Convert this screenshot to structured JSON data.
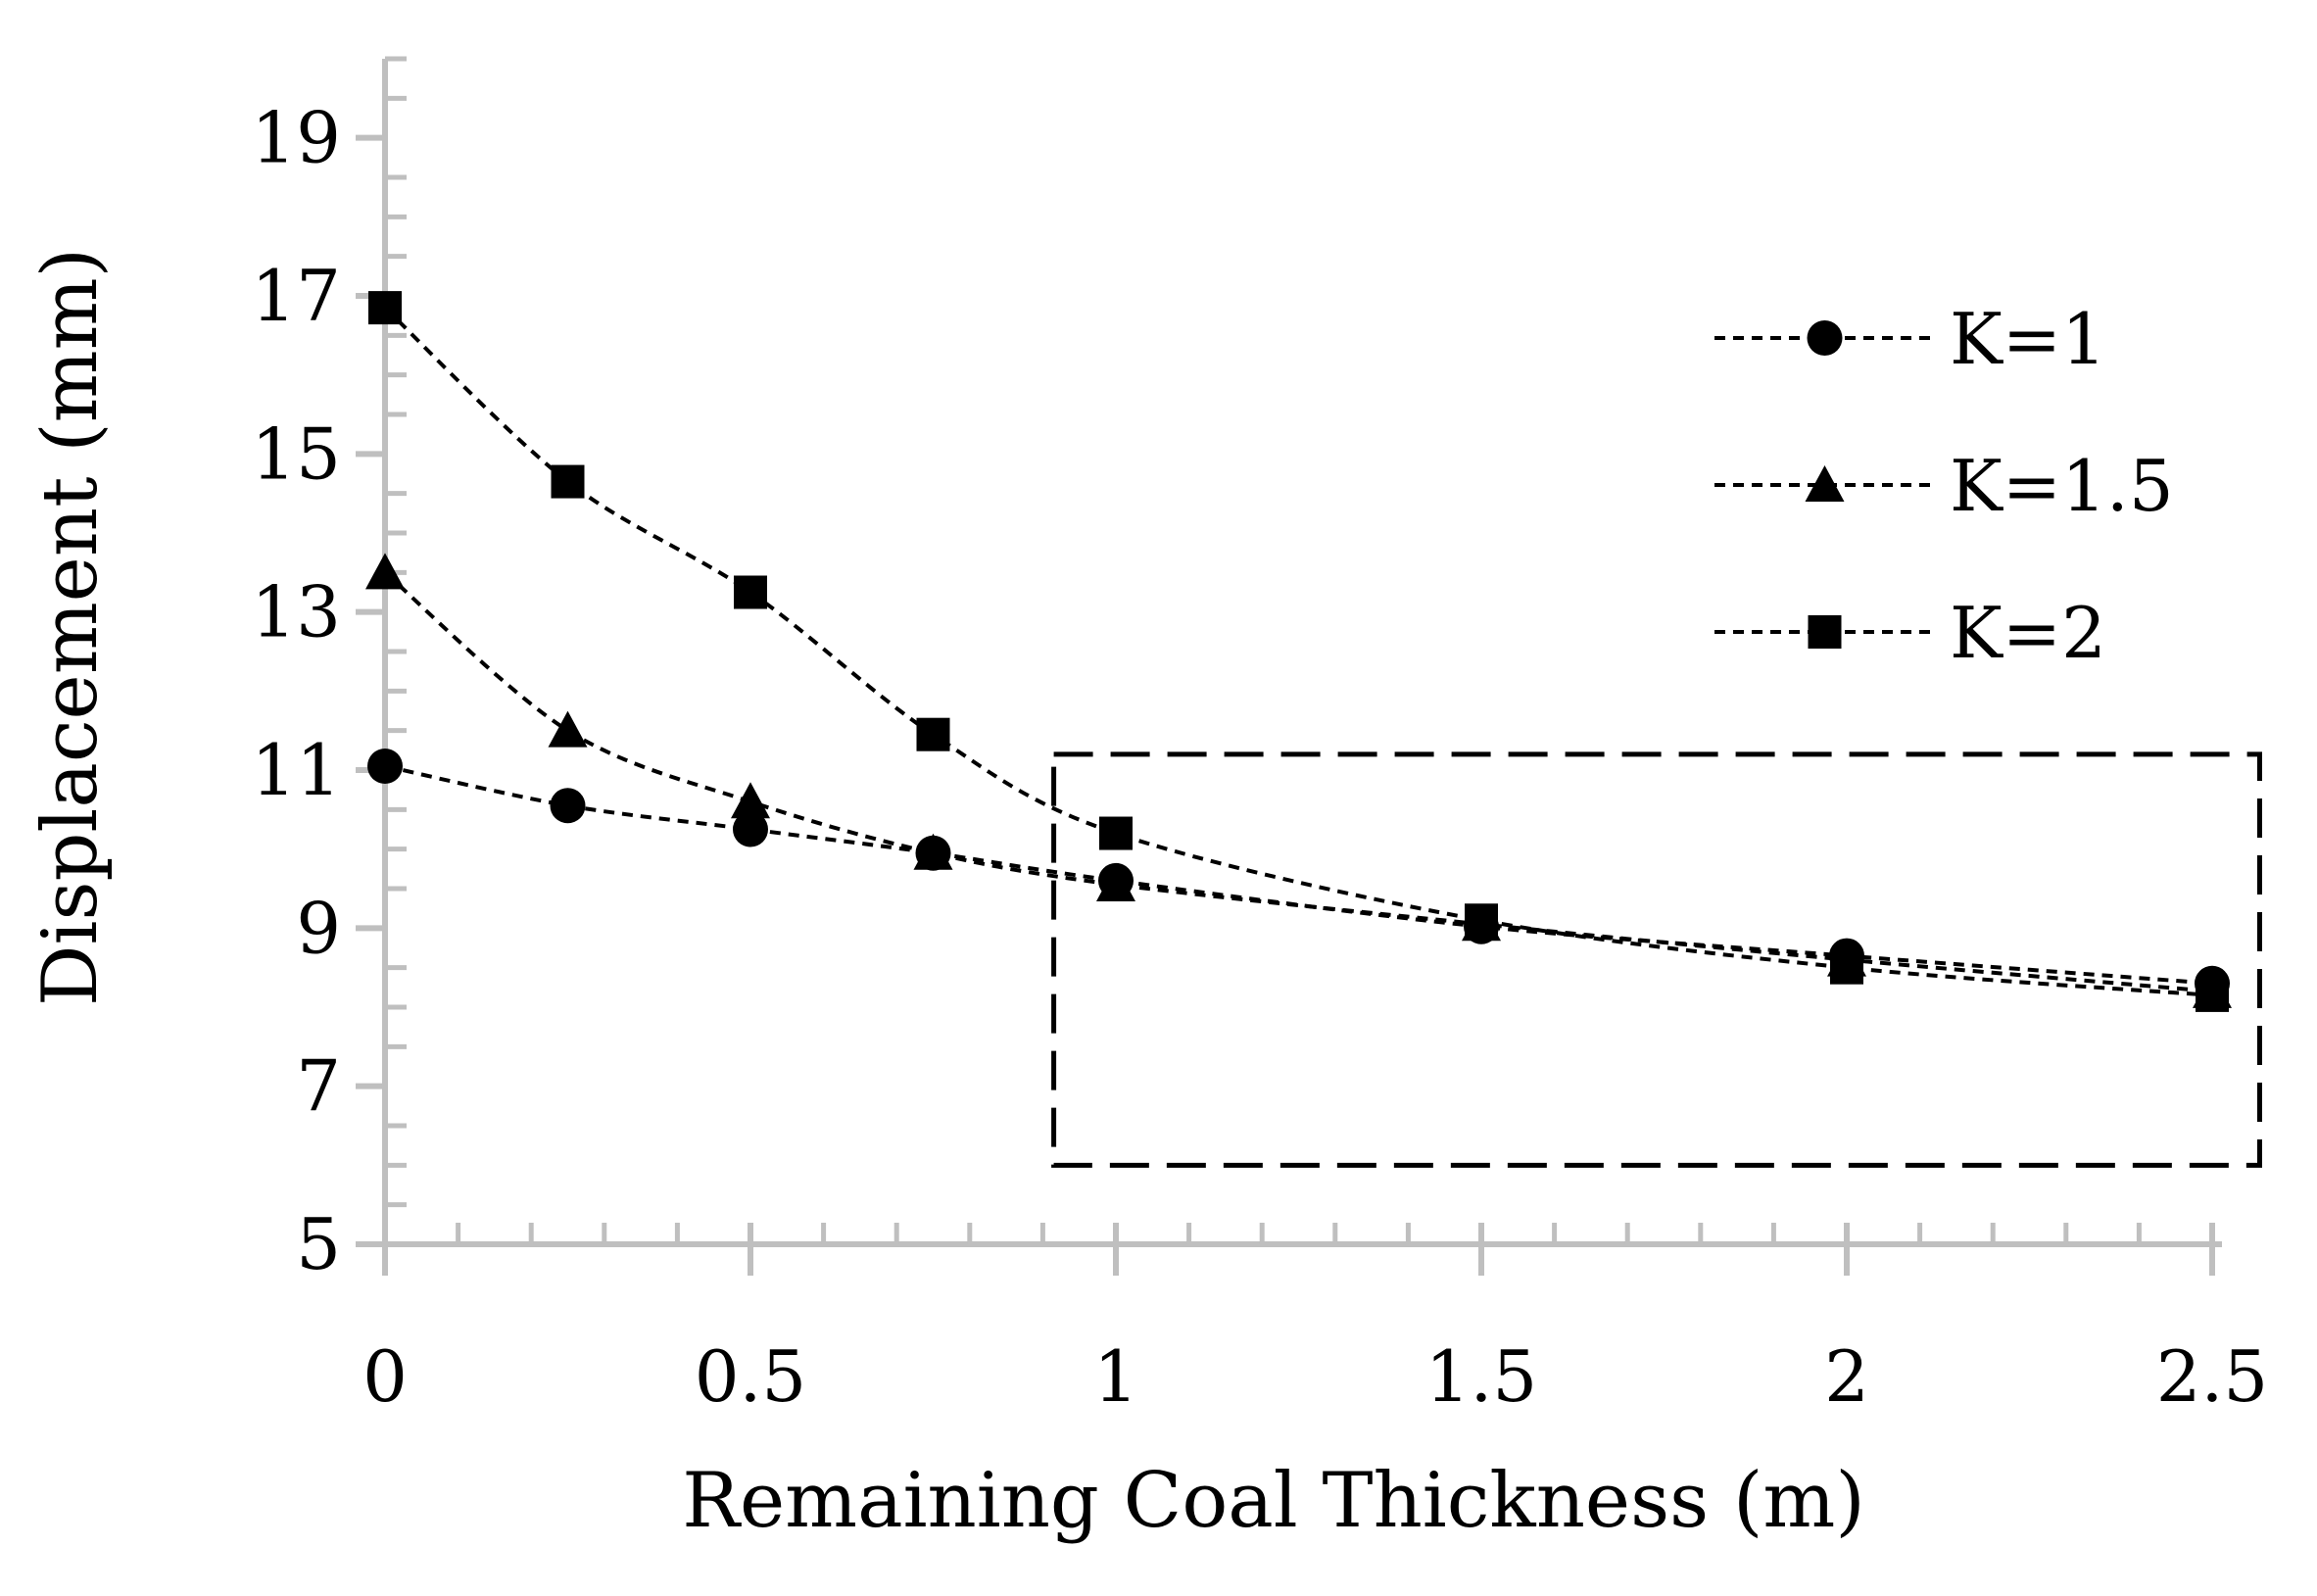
{
  "chart_data": {
    "type": "line",
    "title": "",
    "xlabel": "Remaining Coal Thickness (m)",
    "ylabel": "Displacement (mm)",
    "xlim": [
      0,
      2.5
    ],
    "ylim": [
      5,
      20
    ],
    "x_ticks": [
      0,
      0.5,
      1,
      1.5,
      2,
      2.5
    ],
    "x_tick_labels": [
      "0",
      "0.5",
      "1",
      "1.5",
      "2",
      "2.5"
    ],
    "y_ticks": [
      5,
      7,
      9,
      11,
      13,
      15,
      17,
      19
    ],
    "y_tick_labels": [
      "5",
      "7",
      "9",
      "11",
      "13",
      "15",
      "17",
      "19"
    ],
    "grid": false,
    "legend_position": "top-right",
    "x": [
      0,
      0.25,
      0.5,
      0.75,
      1,
      1.5,
      2,
      2.5
    ],
    "series": [
      {
        "name": "K=1",
        "marker": "circle",
        "values": [
          11.05,
          10.55,
          10.25,
          9.95,
          9.6,
          9.02,
          8.65,
          8.3
        ]
      },
      {
        "name": "K=1.5",
        "marker": "triangle",
        "values": [
          13.5,
          11.5,
          10.6,
          9.95,
          9.55,
          9.05,
          8.6,
          8.2
        ]
      },
      {
        "name": "K=2",
        "marker": "square",
        "values": [
          16.85,
          14.65,
          13.25,
          11.45,
          10.2,
          9.1,
          8.5,
          8.15
        ]
      }
    ],
    "annotation": {
      "type": "dashed-rectangle",
      "x_range": [
        0.915,
        2.565
      ],
      "y_range": [
        6.0,
        11.2
      ]
    },
    "colors": {
      "series": "#000000",
      "axis": "#bfbfbf"
    }
  }
}
